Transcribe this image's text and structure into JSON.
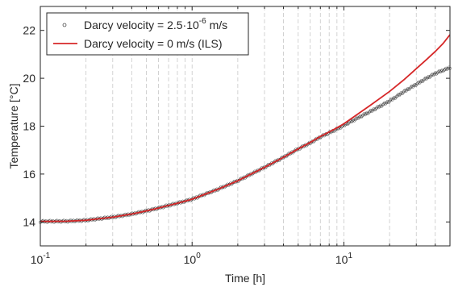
{
  "chart_data": {
    "type": "line",
    "xlabel": "Time [h]",
    "ylabel": "Temperature [°C]",
    "x_scale": "log",
    "xlim": [
      0.1,
      50
    ],
    "ylim": [
      13,
      23
    ],
    "x_ticks": [
      {
        "value": 0.1,
        "base": "10",
        "exp": "-1"
      },
      {
        "value": 1,
        "base": "10",
        "exp": "0"
      },
      {
        "value": 10,
        "base": "10",
        "exp": "1"
      }
    ],
    "y_ticks": [
      14,
      16,
      18,
      20,
      22
    ],
    "grid": "vertical dashed at log minor ticks",
    "legend_position": "top-left",
    "series": [
      {
        "name_parts": {
          "pre": "Darcy velocity = 2.5·10",
          "exp": "-6",
          "post": " m/s"
        },
        "style": "markers",
        "color": "#000000",
        "x": [
          0.1,
          0.15,
          0.2,
          0.3,
          0.4,
          0.5,
          0.6,
          0.7,
          0.8,
          0.9,
          1,
          1.5,
          2,
          3,
          4,
          5,
          6,
          7,
          8,
          9,
          10,
          12,
          15,
          20,
          25,
          30,
          35,
          40,
          45,
          50
        ],
        "y": [
          14.02,
          14.03,
          14.07,
          14.2,
          14.33,
          14.46,
          14.58,
          14.69,
          14.78,
          14.87,
          14.95,
          15.38,
          15.72,
          16.28,
          16.7,
          17.05,
          17.3,
          17.55,
          17.72,
          17.88,
          18.03,
          18.3,
          18.62,
          19.05,
          19.45,
          19.75,
          20.0,
          20.2,
          20.33,
          20.45
        ]
      },
      {
        "name_parts": {
          "pre": "Darcy velocity = 0 m/s (ILS)",
          "exp": "",
          "post": ""
        },
        "style": "line",
        "color": "#d62728",
        "x": [
          0.1,
          0.15,
          0.2,
          0.3,
          0.4,
          0.5,
          0.6,
          0.7,
          0.8,
          0.9,
          1,
          1.5,
          2,
          3,
          4,
          5,
          6,
          7,
          8,
          9,
          10,
          12,
          15,
          20,
          25,
          30,
          35,
          40,
          45,
          50
        ],
        "y": [
          14.02,
          14.03,
          14.07,
          14.2,
          14.33,
          14.46,
          14.58,
          14.69,
          14.78,
          14.87,
          14.95,
          15.38,
          15.72,
          16.28,
          16.7,
          17.05,
          17.32,
          17.57,
          17.76,
          17.93,
          18.1,
          18.45,
          18.88,
          19.45,
          19.95,
          20.4,
          20.78,
          21.12,
          21.45,
          21.82
        ]
      }
    ]
  }
}
